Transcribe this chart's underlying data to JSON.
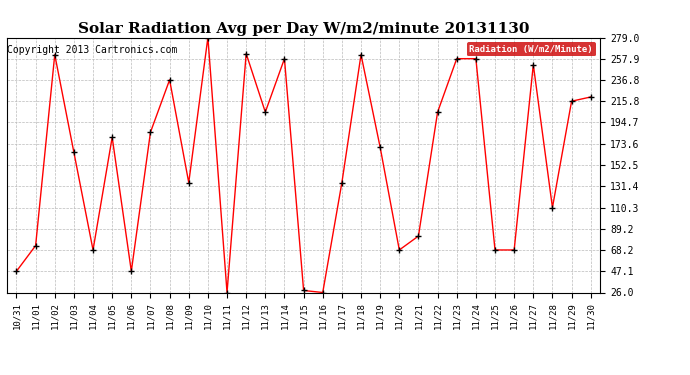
{
  "title": "Solar Radiation Avg per Day W/m2/minute 20131130",
  "copyright": "Copyright 2013 Cartronics.com",
  "legend_label": "Radiation (W/m2/Minute)",
  "dates": [
    "10/31",
    "11/01",
    "11/02",
    "11/03",
    "11/04",
    "11/05",
    "11/06",
    "11/07",
    "11/08",
    "11/09",
    "11/10",
    "11/11",
    "11/12",
    "11/13",
    "11/14",
    "11/15",
    "11/16",
    "11/17",
    "11/18",
    "11/19",
    "11/20",
    "11/21",
    "11/22",
    "11/23",
    "11/24",
    "11/25",
    "11/26",
    "11/27",
    "11/28",
    "11/29",
    "11/30"
  ],
  "values": [
    47.1,
    72.5,
    262.0,
    165.0,
    68.2,
    180.0,
    47.1,
    185.0,
    237.0,
    135.0,
    279.0,
    26.0,
    263.0,
    205.0,
    258.0,
    28.0,
    26.0,
    135.0,
    262.0,
    170.0,
    68.2,
    82.0,
    205.0,
    258.0,
    258.0,
    68.2,
    68.2,
    252.0,
    110.3,
    215.8,
    220.0
  ],
  "ylim_min": 26.0,
  "ylim_max": 279.0,
  "yticks": [
    26.0,
    47.1,
    68.2,
    89.2,
    110.3,
    131.4,
    152.5,
    173.6,
    194.7,
    215.8,
    236.8,
    257.9,
    279.0
  ],
  "line_color": "red",
  "marker_color": "black",
  "bg_color": "#ffffff",
  "plot_bg_color": "#ffffff",
  "grid_color": "#bbbbbb",
  "title_fontsize": 11,
  "copyright_fontsize": 7,
  "legend_bg": "#cc0000",
  "legend_fg": "#ffffff"
}
